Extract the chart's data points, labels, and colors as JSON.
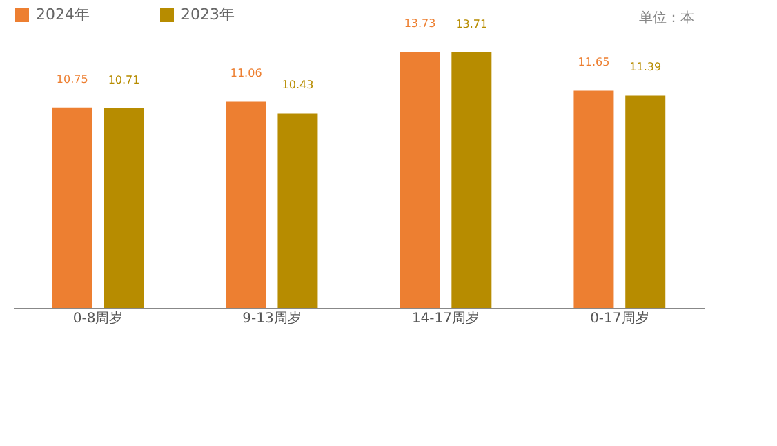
{
  "chart_data": {
    "type": "bar",
    "categories": [
      "0-8周岁",
      "9-13周岁",
      "14-17周岁",
      "0-17周岁"
    ],
    "series": [
      {
        "name": "2024年",
        "color": "#ed7f31",
        "values": [
          10.75,
          11.06,
          13.73,
          11.65
        ]
      },
      {
        "name": "2023年",
        "color": "#b78c00",
        "values": [
          10.71,
          10.43,
          13.71,
          11.39
        ]
      }
    ],
    "annotations": [
      "单位：本"
    ],
    "data_labels": true,
    "legend": "top",
    "grid": false
  }
}
